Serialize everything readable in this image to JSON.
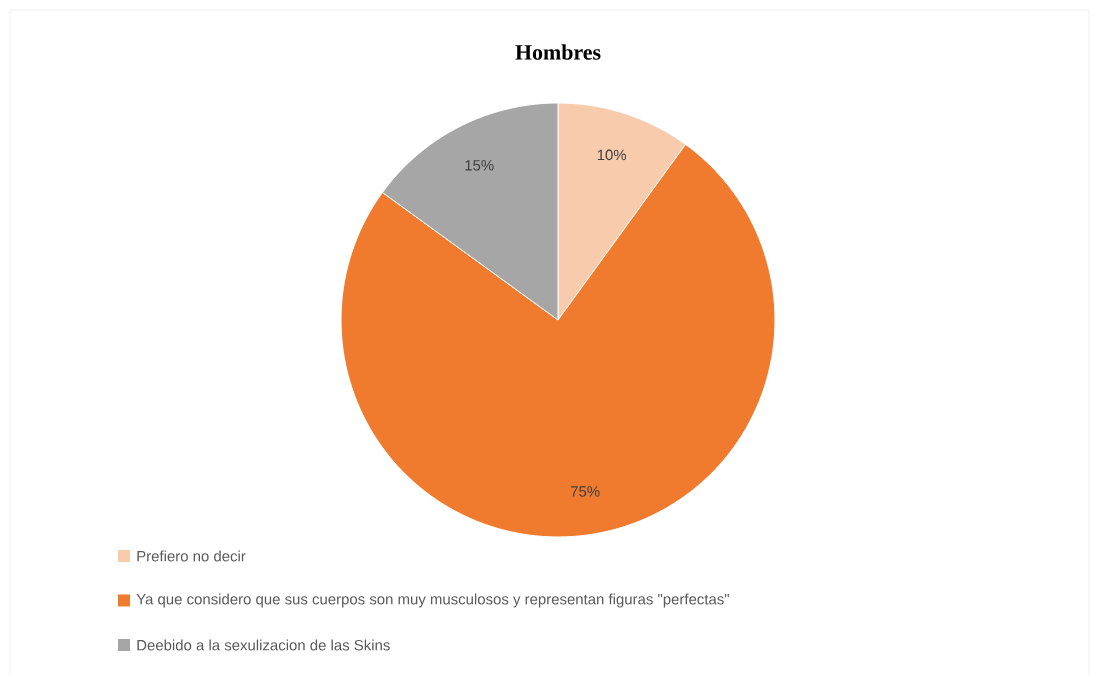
{
  "chart_data": {
    "type": "pie",
    "title": "Hombres",
    "categories": [
      "Prefiero no decir",
      "Ya que considero que sus cuerpos son muy musculosos y representan figuras \"perfectas\"",
      "Deebido a la sexulizacion de las Skins"
    ],
    "values": [
      10,
      75,
      15
    ],
    "colors": [
      "#f8cbad",
      "#f07a2e",
      "#a6a6a6"
    ],
    "value_labels": [
      "10%",
      "75%",
      "15%"
    ],
    "legend": "bottom left"
  }
}
